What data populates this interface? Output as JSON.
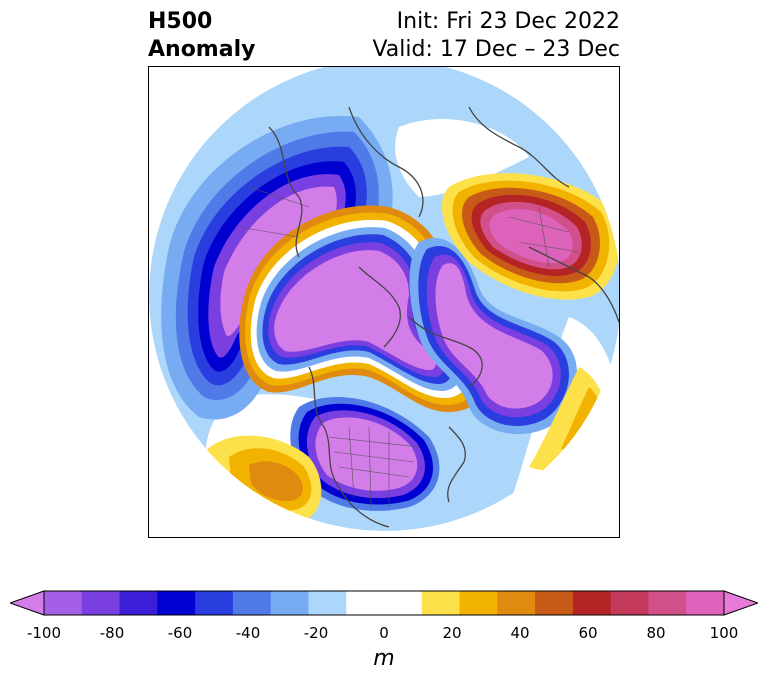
{
  "title": {
    "left_line1": "H500",
    "left_line2": "Anomaly",
    "right_line1": "Init: Fri 23 Dec 2022",
    "right_line2": "Valid: 17 Dec – 23 Dec"
  },
  "colorbar": {
    "unit": "m",
    "tick_labels": [
      "-100",
      "-80",
      "-60",
      "-40",
      "-20",
      "0",
      "20",
      "40",
      "60",
      "80",
      "100"
    ],
    "colors": [
      "#a45fe6",
      "#7a3fe0",
      "#3b1ed6",
      "#0000d0",
      "#2a3ee0",
      "#4f7ae8",
      "#78acf2",
      "#acd7fa",
      "#ffffff",
      "#ffffff",
      "#fde14a",
      "#f2b200",
      "#e08a10",
      "#c85a18",
      "#b42424",
      "#c43a5a",
      "#d2508a",
      "#dc62ba"
    ],
    "under_color": "#d37de8",
    "over_color": "#e87ad8"
  },
  "map": {
    "projection": "north-polar-stereographic",
    "field": "500 hPa geopotential height anomaly"
  }
}
